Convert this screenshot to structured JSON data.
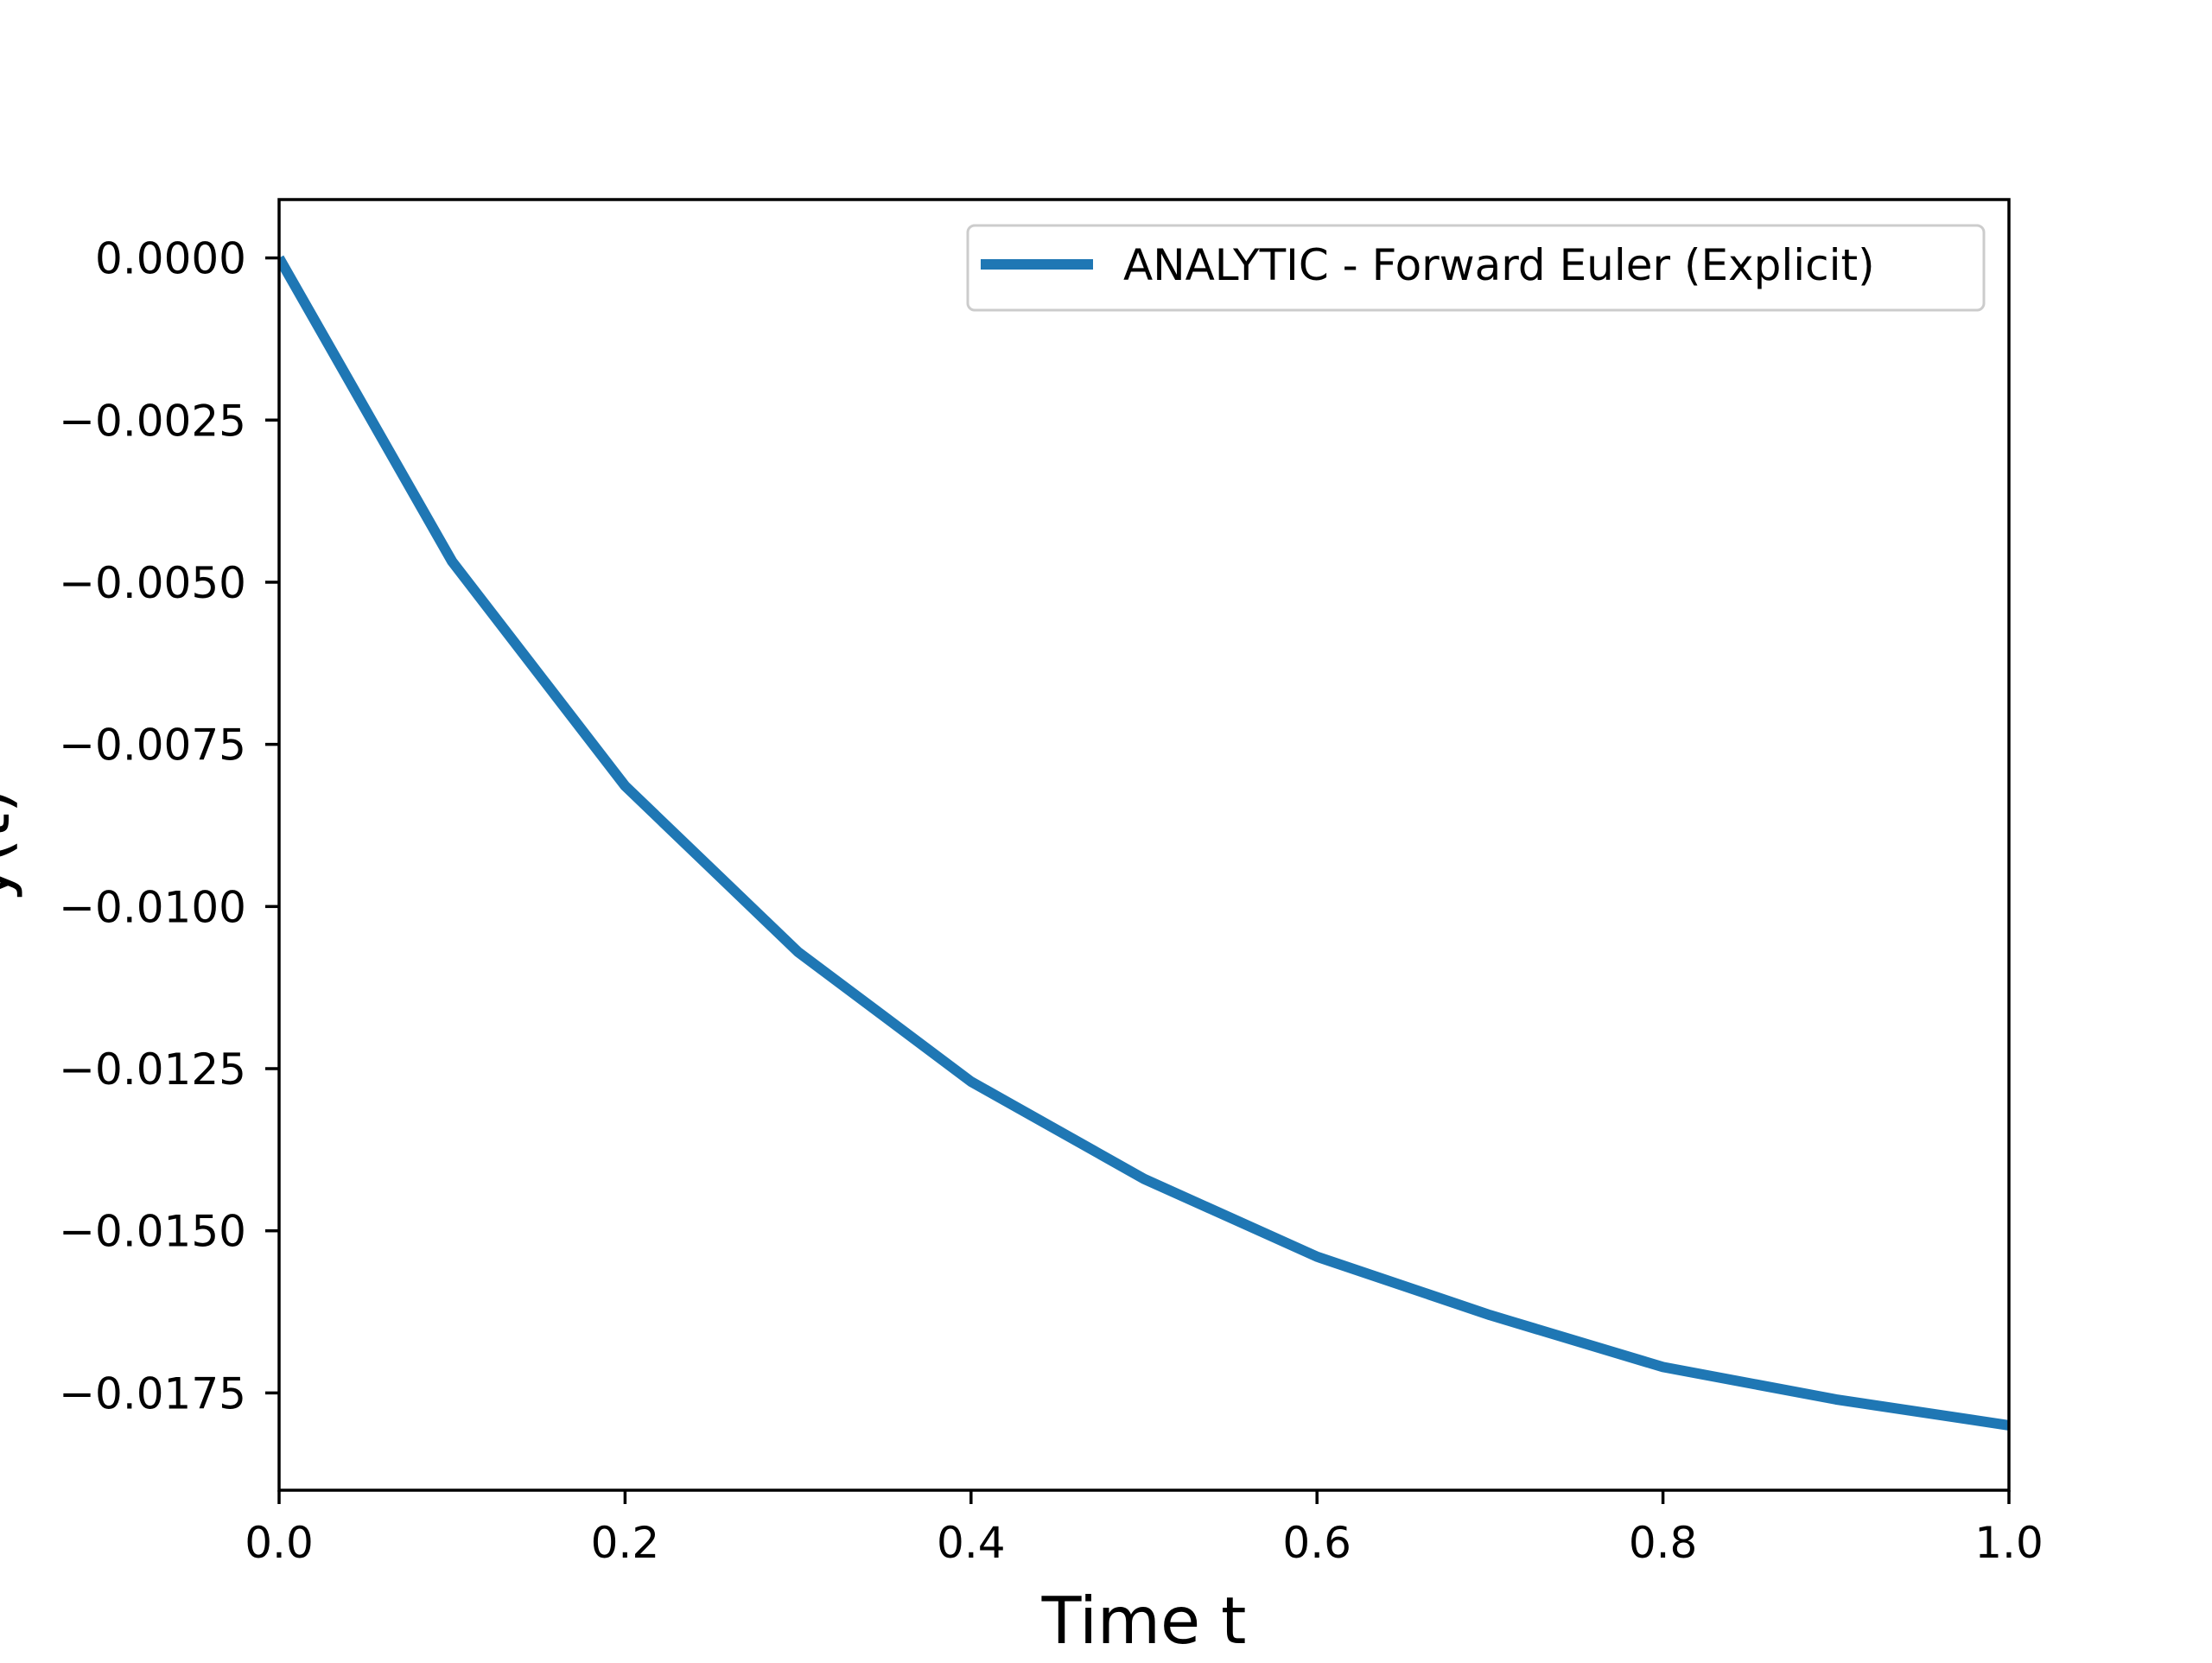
{
  "chart_data": {
    "type": "line",
    "title": "",
    "xlabel": "Time t",
    "ylabel": "y(t)",
    "xlim": [
      0.0,
      1.0
    ],
    "ylim": [
      -0.019,
      0.0009
    ],
    "xticks": [
      0.0,
      0.2,
      0.4,
      0.6,
      0.8,
      1.0
    ],
    "xtick_labels": [
      "0.0",
      "0.2",
      "0.4",
      "0.6",
      "0.8",
      "1.0"
    ],
    "yticks": [
      0.0,
      -0.0025,
      -0.005,
      -0.0075,
      -0.01,
      -0.0125,
      -0.015,
      -0.0175
    ],
    "ytick_labels": [
      "0.0000",
      "−0.0025",
      "−0.0050",
      "−0.0075",
      "−0.0100",
      "−0.0125",
      "−0.0150",
      "−0.0175"
    ],
    "grid": false,
    "legend": "top-right",
    "series": [
      {
        "name": "ANALYTIC - Forward Euler (Explicit)",
        "color": "#1f77b4",
        "x": [
          0.0,
          0.1,
          0.2,
          0.3,
          0.4,
          0.5,
          0.6,
          0.7,
          0.8,
          0.9,
          1.0
        ],
        "y": [
          0.0,
          -0.00468,
          -0.00814,
          -0.0107,
          -0.0127,
          -0.0142,
          -0.0154,
          -0.0163,
          -0.0171,
          -0.0176,
          -0.018
        ]
      }
    ]
  }
}
